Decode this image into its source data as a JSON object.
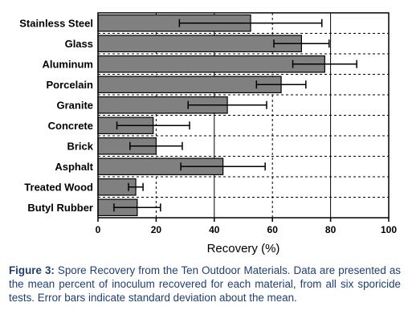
{
  "chart_data": {
    "type": "bar",
    "orientation": "horizontal",
    "categories": [
      "Stainless Steel",
      "Glass",
      "Aluminum",
      "Porcelain",
      "Granite",
      "Concrete",
      "Brick",
      "Asphalt",
      "Treated Wood",
      "Butyl Rubber"
    ],
    "values": [
      52.5,
      70,
      78,
      63,
      44.5,
      19,
      20,
      43,
      13,
      13.5
    ],
    "error": [
      24.5,
      9.5,
      11,
      8.5,
      13.5,
      12.5,
      9,
      14.5,
      2.5,
      8
    ],
    "xlabel": "Recovery (%)",
    "xlim": [
      0,
      100
    ],
    "xticks": [
      "0",
      "20",
      "40",
      "60",
      "80",
      "100"
    ],
    "bar_color": "#808080",
    "grid": "vertical dashed at 20,60,100; solid at 40,80; horizontal dashed between bars"
  },
  "caption": {
    "label": "Figure 3:",
    "text": " Spore Recovery from the Ten Outdoor Materials. Data are presented as the mean percent of inoculum recovered for each material, from all six sporicide tests. Error bars indicate standard deviation about the mean."
  }
}
